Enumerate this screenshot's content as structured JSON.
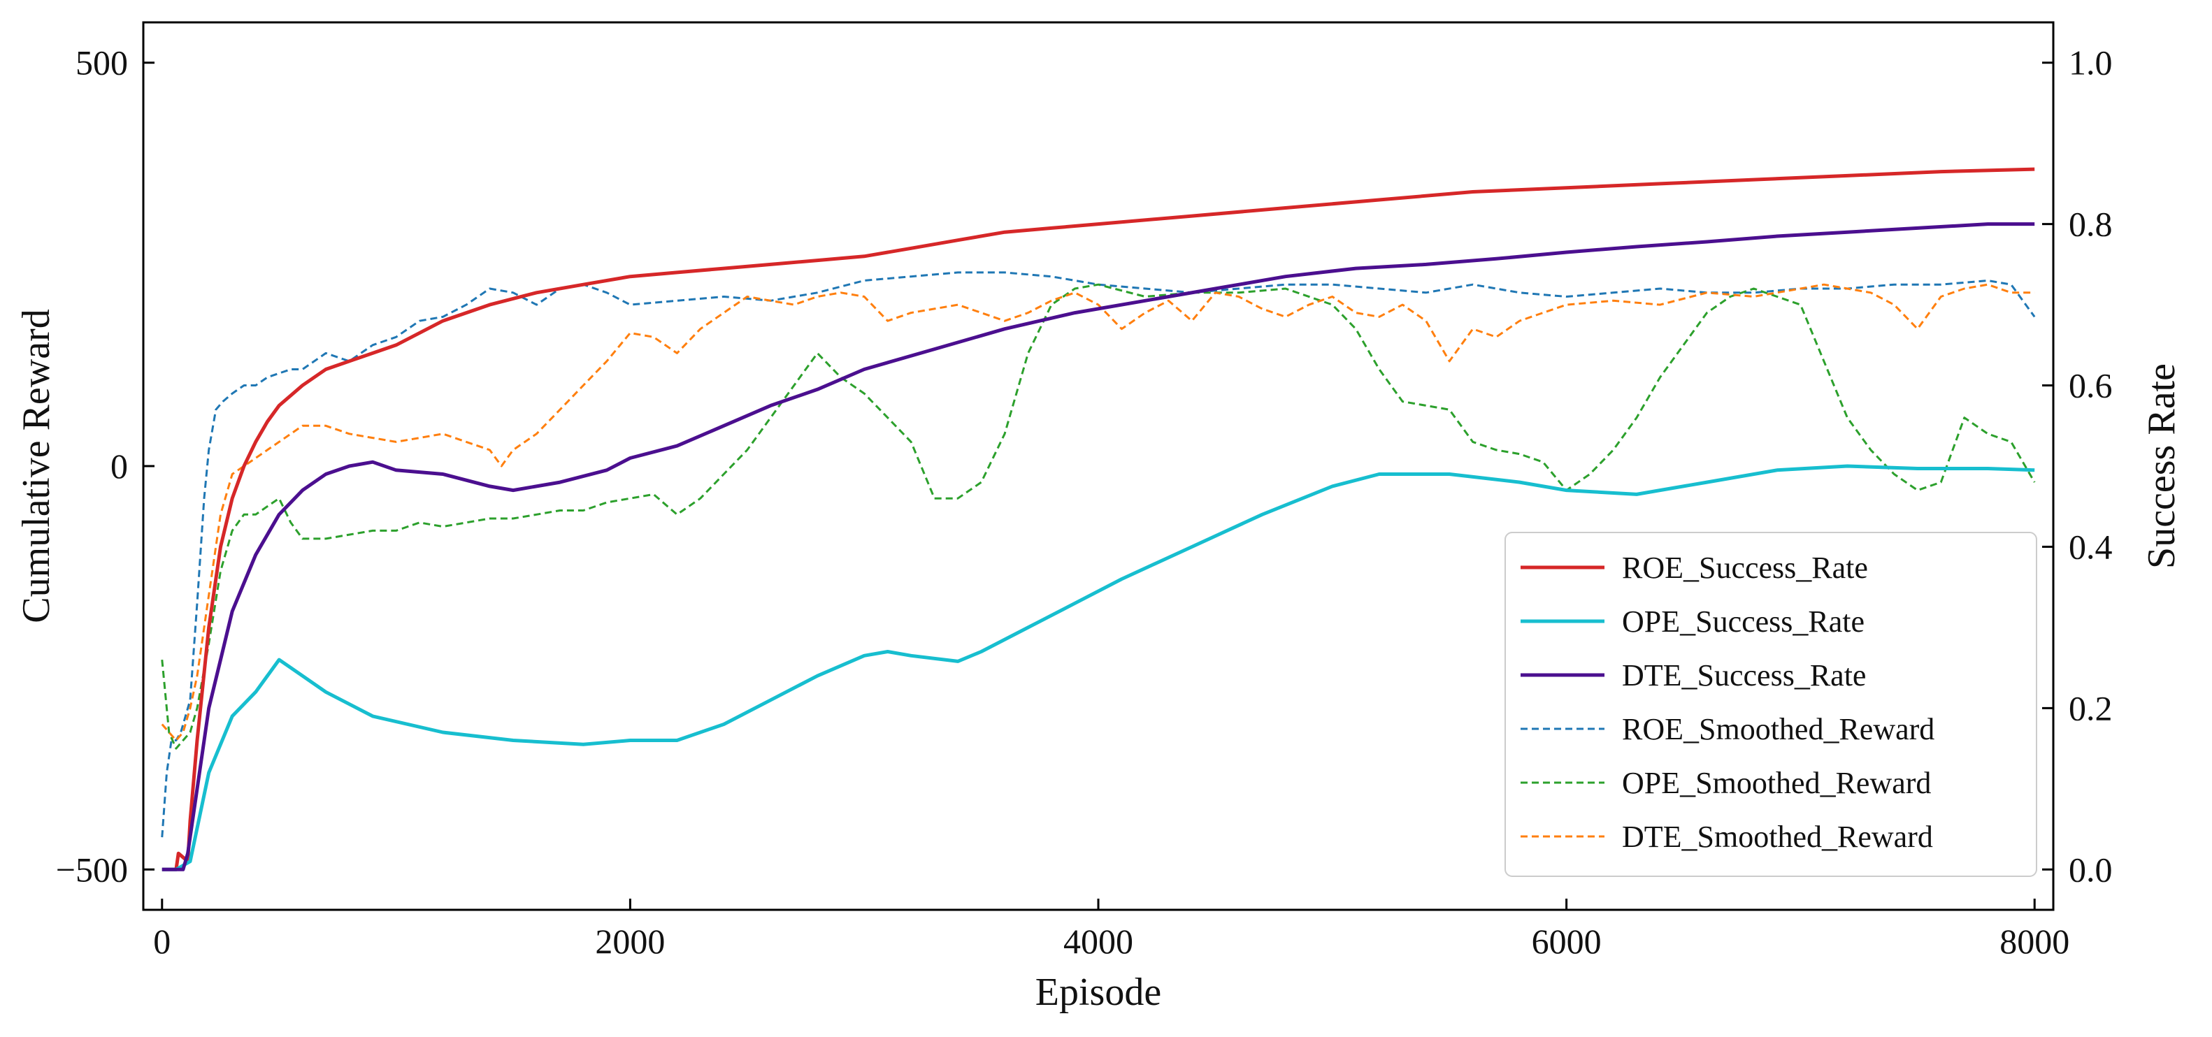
{
  "chart_data": {
    "type": "line",
    "title": "",
    "xlabel": "Episode",
    "ylabel_left": "Cumulative Reward",
    "ylabel_right": "Success Rate",
    "xlim": [
      -80,
      8080
    ],
    "ylim_left": [
      -550,
      550
    ],
    "ylim_right": [
      -0.05,
      1.05
    ],
    "xticks": [
      0,
      2000,
      4000,
      6000,
      8000
    ],
    "xtick_labels": [
      "0",
      "2000",
      "4000",
      "6000",
      "8000"
    ],
    "yticks_left": [
      -500,
      0,
      500
    ],
    "ytick_labels_left": [
      "−500",
      "0",
      "500"
    ],
    "yticks_right": [
      0.0,
      0.2,
      0.4,
      0.6,
      0.8,
      1.0
    ],
    "ytick_labels_right": [
      "0.0",
      "0.2",
      "0.4",
      "0.6",
      "0.8",
      "1.0"
    ],
    "grid": false,
    "legend_position": "lower-right",
    "series": [
      {
        "name": "ROE_Success_Rate",
        "axis": "right",
        "style": "solid",
        "color": "#d62728",
        "x": [
          0,
          60,
          70,
          110,
          120,
          150,
          200,
          250,
          300,
          350,
          400,
          450,
          500,
          600,
          700,
          800,
          1000,
          1200,
          1400,
          1600,
          1800,
          2000,
          2200,
          2400,
          2600,
          2800,
          3000,
          3200,
          3400,
          3600,
          3800,
          4000,
          4400,
          4800,
          5200,
          5600,
          6000,
          6400,
          6800,
          7200,
          7600,
          8000
        ],
        "y": [
          0.0,
          0.0,
          0.02,
          0.01,
          0.06,
          0.16,
          0.3,
          0.4,
          0.46,
          0.5,
          0.53,
          0.555,
          0.575,
          0.6,
          0.62,
          0.63,
          0.65,
          0.68,
          0.7,
          0.715,
          0.725,
          0.735,
          0.74,
          0.745,
          0.75,
          0.755,
          0.76,
          0.77,
          0.78,
          0.79,
          0.795,
          0.8,
          0.81,
          0.82,
          0.83,
          0.84,
          0.845,
          0.85,
          0.855,
          0.86,
          0.865,
          0.868
        ]
      },
      {
        "name": "OPE_Success_Rate",
        "axis": "right",
        "style": "solid",
        "color": "#17becf",
        "x": [
          0,
          60,
          90,
          120,
          200,
          300,
          400,
          500,
          550,
          700,
          900,
          1200,
          1500,
          1800,
          2000,
          2200,
          2400,
          2600,
          2800,
          3000,
          3100,
          3200,
          3400,
          3500,
          3700,
          3900,
          4100,
          4400,
          4700,
          5000,
          5200,
          5500,
          5800,
          6000,
          6300,
          6600,
          6900,
          7200,
          7500,
          7800,
          8000
        ],
        "y": [
          0.0,
          0.0,
          0.005,
          0.01,
          0.12,
          0.19,
          0.22,
          0.26,
          0.25,
          0.22,
          0.19,
          0.17,
          0.16,
          0.155,
          0.16,
          0.16,
          0.18,
          0.21,
          0.24,
          0.265,
          0.27,
          0.265,
          0.258,
          0.27,
          0.3,
          0.33,
          0.36,
          0.4,
          0.44,
          0.475,
          0.49,
          0.49,
          0.48,
          0.47,
          0.465,
          0.48,
          0.495,
          0.5,
          0.497,
          0.497,
          0.495
        ]
      },
      {
        "name": "DTE_Success_Rate",
        "axis": "right",
        "style": "solid",
        "color": "#4b0f8f",
        "x": [
          0,
          90,
          110,
          150,
          200,
          250,
          300,
          400,
          500,
          600,
          700,
          800,
          900,
          1000,
          1200,
          1400,
          1500,
          1700,
          1900,
          2000,
          2200,
          2400,
          2600,
          2800,
          3000,
          3300,
          3600,
          3900,
          4200,
          4500,
          4800,
          5100,
          5400,
          5700,
          6000,
          6300,
          6600,
          6900,
          7200,
          7500,
          7800,
          8000
        ],
        "y": [
          0.0,
          0.0,
          0.02,
          0.1,
          0.2,
          0.26,
          0.32,
          0.39,
          0.44,
          0.47,
          0.49,
          0.5,
          0.505,
          0.495,
          0.49,
          0.475,
          0.47,
          0.48,
          0.495,
          0.51,
          0.525,
          0.55,
          0.575,
          0.595,
          0.62,
          0.645,
          0.67,
          0.69,
          0.705,
          0.72,
          0.735,
          0.745,
          0.75,
          0.757,
          0.765,
          0.772,
          0.778,
          0.785,
          0.79,
          0.795,
          0.8,
          0.8
        ]
      },
      {
        "name": "ROE_Smoothed_Reward",
        "axis": "left",
        "style": "dashed",
        "color": "#1f77b4",
        "x": [
          0,
          20,
          40,
          60,
          80,
          100,
          120,
          150,
          180,
          200,
          230,
          260,
          300,
          350,
          400,
          450,
          500,
          550,
          600,
          700,
          800,
          900,
          1000,
          1100,
          1200,
          1300,
          1400,
          1500,
          1600,
          1700,
          1800,
          1900,
          2000,
          2200,
          2400,
          2600,
          2800,
          3000,
          3200,
          3400,
          3600,
          3800,
          4000,
          4200,
          4400,
          4600,
          4800,
          5000,
          5200,
          5400,
          5600,
          5800,
          6000,
          6200,
          6400,
          6600,
          6800,
          7000,
          7200,
          7400,
          7600,
          7800,
          7900,
          8000
        ],
        "y": [
          -460,
          -380,
          -340,
          -340,
          -330,
          -310,
          -290,
          -170,
          -40,
          20,
          70,
          80,
          90,
          100,
          100,
          110,
          115,
          120,
          120,
          140,
          130,
          150,
          160,
          180,
          185,
          200,
          220,
          215,
          200,
          220,
          225,
          215,
          200,
          205,
          210,
          205,
          215,
          230,
          235,
          240,
          240,
          235,
          225,
          220,
          215,
          220,
          225,
          225,
          220,
          215,
          225,
          215,
          210,
          215,
          220,
          215,
          215,
          220,
          220,
          225,
          225,
          230,
          225,
          185
        ]
      },
      {
        "name": "OPE_Smoothed_Reward",
        "axis": "left",
        "style": "dashed",
        "color": "#2ca02c",
        "x": [
          0,
          30,
          60,
          90,
          120,
          150,
          200,
          250,
          300,
          350,
          400,
          450,
          500,
          550,
          600,
          700,
          800,
          900,
          1000,
          1100,
          1200,
          1300,
          1400,
          1500,
          1600,
          1700,
          1800,
          1900,
          2000,
          2100,
          2200,
          2300,
          2400,
          2500,
          2600,
          2700,
          2800,
          2900,
          3000,
          3100,
          3200,
          3300,
          3400,
          3500,
          3600,
          3700,
          3800,
          3900,
          4000,
          4200,
          4400,
          4600,
          4800,
          5000,
          5100,
          5200,
          5300,
          5400,
          5500,
          5600,
          5700,
          5800,
          5900,
          6000,
          6100,
          6200,
          6300,
          6400,
          6500,
          6600,
          6700,
          6800,
          6900,
          7000,
          7100,
          7200,
          7300,
          7400,
          7500,
          7600,
          7700,
          7800,
          7900,
          8000
        ],
        "y": [
          -240,
          -330,
          -350,
          -340,
          -330,
          -300,
          -220,
          -130,
          -80,
          -60,
          -60,
          -50,
          -40,
          -70,
          -90,
          -90,
          -85,
          -80,
          -80,
          -70,
          -75,
          -70,
          -65,
          -65,
          -60,
          -55,
          -55,
          -45,
          -40,
          -35,
          -60,
          -40,
          -10,
          20,
          60,
          100,
          140,
          110,
          90,
          60,
          30,
          -40,
          -40,
          -20,
          40,
          140,
          200,
          220,
          225,
          210,
          215,
          215,
          220,
          200,
          170,
          120,
          80,
          75,
          70,
          30,
          20,
          15,
          5,
          -30,
          -10,
          20,
          60,
          110,
          150,
          190,
          210,
          220,
          210,
          200,
          130,
          60,
          20,
          -10,
          -30,
          -20,
          60,
          40,
          30,
          -20
        ]
      },
      {
        "name": "DTE_Smoothed_Reward",
        "axis": "left",
        "style": "dashed",
        "color": "#ff7f0e",
        "x": [
          0,
          30,
          60,
          90,
          120,
          150,
          200,
          250,
          300,
          350,
          400,
          450,
          500,
          600,
          700,
          800,
          900,
          1000,
          1100,
          1200,
          1300,
          1400,
          1450,
          1500,
          1600,
          1700,
          1800,
          1900,
          2000,
          2100,
          2200,
          2300,
          2400,
          2500,
          2600,
          2700,
          2800,
          2900,
          3000,
          3100,
          3200,
          3300,
          3400,
          3500,
          3600,
          3700,
          3800,
          3900,
          4000,
          4100,
          4200,
          4300,
          4400,
          4500,
          4600,
          4700,
          4800,
          4900,
          5000,
          5100,
          5200,
          5300,
          5400,
          5500,
          5600,
          5700,
          5800,
          5900,
          6000,
          6200,
          6400,
          6600,
          6800,
          7000,
          7100,
          7200,
          7300,
          7400,
          7500,
          7600,
          7700,
          7800,
          7900,
          8000
        ],
        "y": [
          -320,
          -330,
          -340,
          -330,
          -300,
          -260,
          -160,
          -60,
          -10,
          0,
          10,
          20,
          30,
          50,
          50,
          40,
          35,
          30,
          35,
          40,
          30,
          20,
          0,
          20,
          40,
          70,
          100,
          130,
          165,
          160,
          140,
          170,
          190,
          210,
          205,
          200,
          210,
          215,
          210,
          180,
          190,
          195,
          200,
          190,
          180,
          190,
          205,
          215,
          200,
          170,
          190,
          205,
          180,
          215,
          210,
          195,
          185,
          200,
          210,
          190,
          185,
          200,
          180,
          130,
          170,
          160,
          180,
          190,
          200,
          205,
          200,
          215,
          210,
          220,
          225,
          220,
          215,
          200,
          170,
          210,
          220,
          225,
          215,
          215
        ]
      }
    ]
  }
}
